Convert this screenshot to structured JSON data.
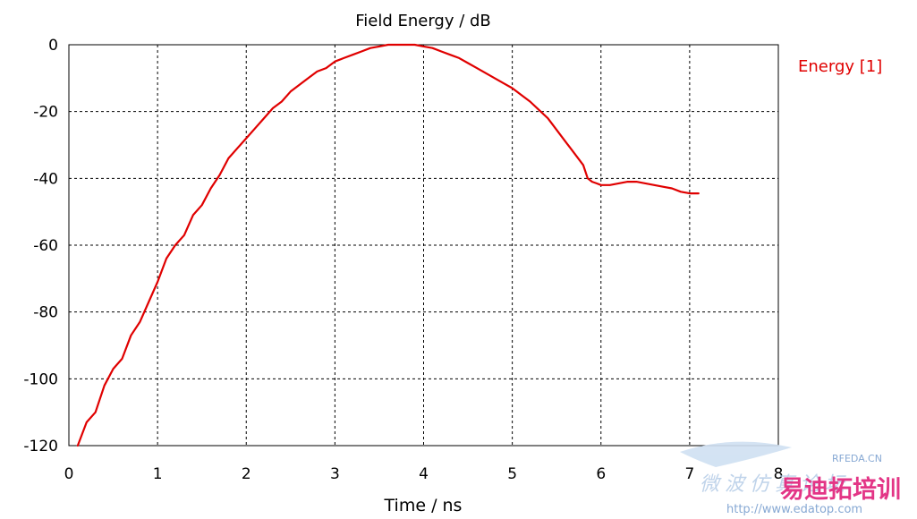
{
  "chart_data": {
    "type": "line",
    "title": "Field Energy / dB",
    "xlabel": "Time / ns",
    "ylabel": "",
    "xlim": [
      0,
      8
    ],
    "ylim": [
      -120,
      0
    ],
    "x_ticks": [
      0,
      1,
      2,
      3,
      4,
      5,
      6,
      7,
      8
    ],
    "y_ticks": [
      0,
      -20,
      -40,
      -60,
      -80,
      -100,
      -120
    ],
    "grid": true,
    "grid_style": "dashed",
    "legend_position": "top-right",
    "series": [
      {
        "name": "Energy [1]",
        "color": "#e00000",
        "x": [
          0.1,
          0.2,
          0.3,
          0.4,
          0.5,
          0.6,
          0.7,
          0.8,
          0.9,
          1.0,
          1.1,
          1.2,
          1.3,
          1.4,
          1.5,
          1.6,
          1.7,
          1.8,
          1.9,
          2.0,
          2.1,
          2.2,
          2.3,
          2.4,
          2.5,
          2.6,
          2.7,
          2.8,
          2.9,
          3.0,
          3.1,
          3.2,
          3.3,
          3.4,
          3.5,
          3.6,
          3.7,
          3.8,
          3.9,
          4.0,
          4.1,
          4.2,
          4.3,
          4.4,
          4.5,
          4.6,
          4.7,
          4.8,
          4.9,
          5.0,
          5.1,
          5.2,
          5.3,
          5.4,
          5.5,
          5.6,
          5.7,
          5.8,
          5.85,
          5.9,
          5.95,
          6.0,
          6.1,
          6.2,
          6.3,
          6.4,
          6.5,
          6.6,
          6.7,
          6.8,
          6.9,
          7.0,
          7.1
        ],
        "y": [
          -120,
          -113,
          -110,
          -102,
          -97,
          -94,
          -87,
          -83,
          -77,
          -71,
          -64,
          -60,
          -57,
          -51,
          -48,
          -43,
          -39,
          -34,
          -31,
          -28,
          -25,
          -22,
          -19,
          -17,
          -14,
          -12,
          -10,
          -8,
          -7,
          -5,
          -4,
          -3,
          -2,
          -1,
          -0.5,
          0,
          0,
          0,
          0,
          -0.5,
          -1,
          -2,
          -3,
          -4,
          -5.5,
          -7,
          -8.5,
          -10,
          -11.5,
          -13,
          -15,
          -17,
          -19.5,
          -22,
          -25.5,
          -29,
          -32.5,
          -36,
          -40,
          -41,
          -41.5,
          -42,
          -42,
          -41.5,
          -41,
          -41,
          -41.5,
          -42,
          -42.5,
          -43,
          -44,
          -44.5,
          -44.5
        ]
      }
    ]
  },
  "watermark": {
    "brand_cn": "易迪拓培训",
    "site_cn": "微波仿真论坛",
    "site_tag": "RFEDA.CN",
    "url": "http://www.edatop.com"
  }
}
